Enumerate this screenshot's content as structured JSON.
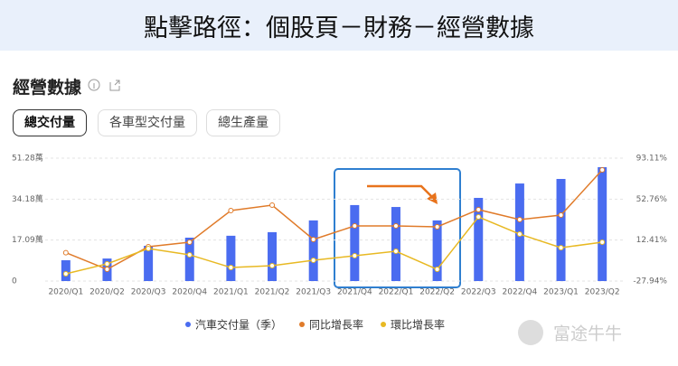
{
  "header": {
    "title": "點擊路徑：個股頁－財務－經營數據"
  },
  "section": {
    "title": "經營數據"
  },
  "tabs": [
    "總交付量",
    "各車型交付量",
    "總生產量"
  ],
  "watermark": "富途牛牛",
  "chart_data": {
    "type": "bar",
    "categories": [
      "2020/Q1",
      "2020/Q2",
      "2020/Q3",
      "2020/Q4",
      "2021/Q1",
      "2021/Q2",
      "2021/Q3",
      "2021/Q4",
      "2022/Q1",
      "2022/Q2",
      "2022/Q3",
      "2022/Q4",
      "2023/Q1",
      "2023/Q2"
    ],
    "series": [
      {
        "name": "汽車交付量（季）",
        "type": "bar",
        "color": "#4a6cf0",
        "values": [
          8.7,
          9.4,
          14.7,
          18.1,
          18.9,
          20.4,
          25.3,
          31.7,
          30.9,
          25.3,
          34.7,
          40.7,
          42.6,
          47.5
        ]
      },
      {
        "name": "同比增長率",
        "type": "line",
        "axis": "y2",
        "color": "#e07b2a",
        "values": [
          0,
          -16.4,
          5.9,
          10.3,
          41.5,
          46.8,
          13.0,
          26.4,
          26.4,
          25.5,
          42.4,
          32.6,
          37.0,
          81.5
        ]
      },
      {
        "name": "環比增長率",
        "type": "line",
        "axis": "y2",
        "color": "#e8b923",
        "values": [
          -20.8,
          -11.0,
          4.1,
          -2.1,
          -14.6,
          -12.8,
          -7.5,
          -3.0,
          1.4,
          -16.4,
          35.2,
          18.3,
          4.9,
          10.3
        ]
      }
    ],
    "ylim": [
      0,
      51.28
    ],
    "yticks": [
      {
        "value": 0,
        "label": "0"
      },
      {
        "value": 17.09,
        "label": "17.09萬"
      },
      {
        "value": 34.18,
        "label": "34.18萬"
      },
      {
        "value": 51.28,
        "label": "51.28萬"
      }
    ],
    "y2lim": [
      -27.94,
      93.11
    ],
    "y2ticks": [
      {
        "value": -27.94,
        "label": "-27.94%"
      },
      {
        "value": 12.41,
        "label": "12.41%"
      },
      {
        "value": 52.76,
        "label": "52.76%"
      },
      {
        "value": 93.11,
        "label": "93.11%"
      }
    ],
    "grid": true
  }
}
